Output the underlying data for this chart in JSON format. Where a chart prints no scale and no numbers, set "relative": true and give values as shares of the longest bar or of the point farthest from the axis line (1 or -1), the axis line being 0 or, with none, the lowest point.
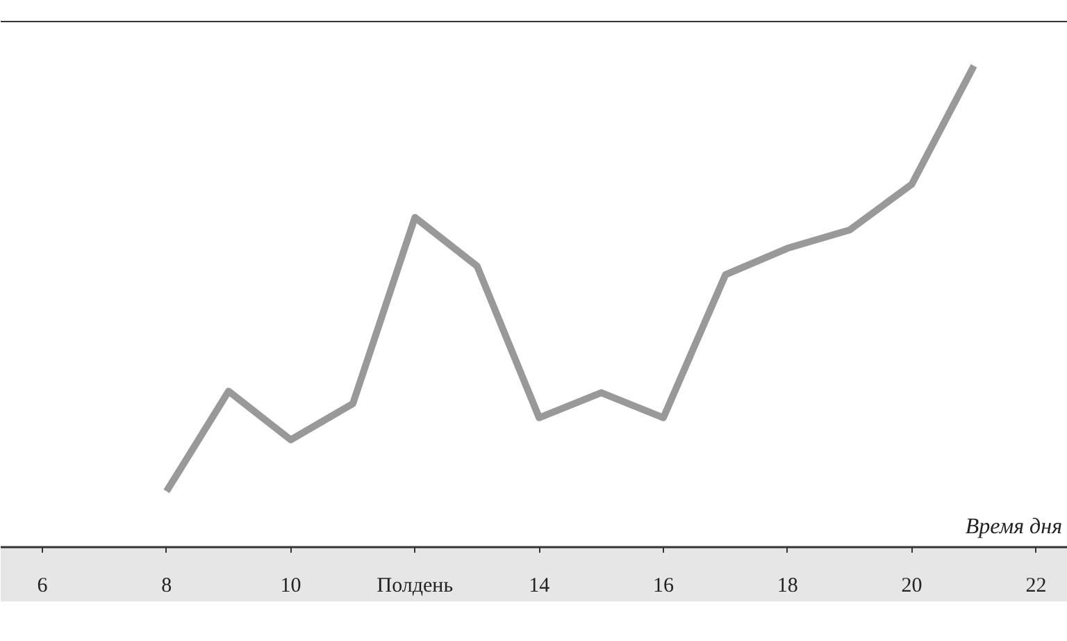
{
  "chart_data": {
    "type": "line",
    "relative": true,
    "xlabel": "Время дня",
    "x": [
      8,
      9,
      10,
      11,
      12,
      13,
      14,
      15,
      16,
      17,
      18,
      19,
      20,
      21
    ],
    "series": [
      {
        "color": "#999999",
        "values": [
          0.116,
          0.324,
          0.223,
          0.298,
          0.685,
          0.584,
          0.269,
          0.321,
          0.269,
          0.566,
          0.621,
          0.659,
          0.754,
          1
        ]
      }
    ],
    "xlim": [
      5.33,
      22.51
    ],
    "xticks": [
      6,
      8,
      10,
      {
        "value": 12,
        "label": "Полдень"
      },
      14,
      16,
      18,
      20,
      22
    ],
    "grid": false,
    "marker": "none",
    "line_style": "solid"
  }
}
